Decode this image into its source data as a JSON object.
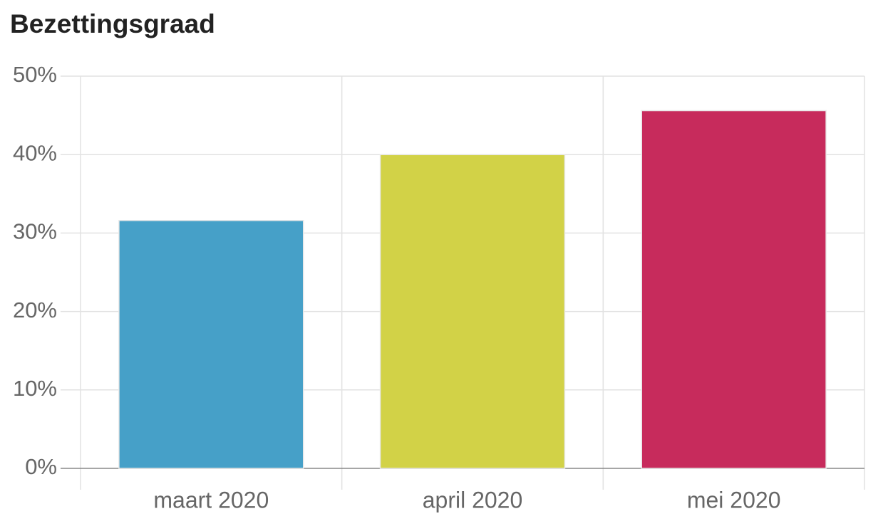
{
  "chart_data": {
    "type": "bar",
    "title": "Bezettingsgraad",
    "categories": [
      "maart 2020",
      "april 2020",
      "mei 2020"
    ],
    "values": [
      31.6,
      40,
      45.6
    ],
    "colors": [
      "#46a0c8",
      "#d2d247",
      "#c72b5c"
    ],
    "ylim": [
      0,
      50
    ],
    "yticks": [
      {
        "value": 0,
        "label": "0%"
      },
      {
        "value": 10,
        "label": "10%"
      },
      {
        "value": 20,
        "label": "20%"
      },
      {
        "value": 30,
        "label": "30%"
      },
      {
        "value": 40,
        "label": "40%"
      },
      {
        "value": 50,
        "label": "50%"
      }
    ],
    "grid": true
  }
}
